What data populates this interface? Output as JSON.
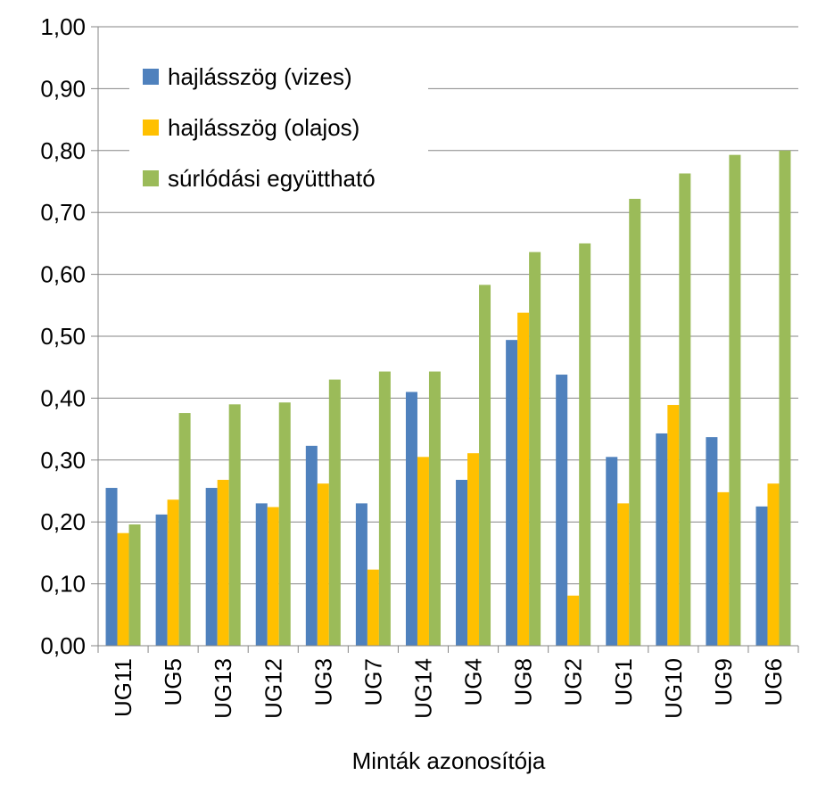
{
  "chart_data": {
    "type": "bar",
    "title": "",
    "xlabel": "Minták azonosítója",
    "ylabel": "",
    "ylim": [
      0,
      1
    ],
    "yticks": [
      "0,00",
      "0,10",
      "0,20",
      "0,30",
      "0,40",
      "0,50",
      "0,60",
      "0,70",
      "0,80",
      "0,90",
      "1,00"
    ],
    "grid": true,
    "legend_position": "top-left",
    "categories": [
      "UG11",
      "UG5",
      "UG13",
      "UG12",
      "UG3",
      "UG7",
      "UG14",
      "UG4",
      "UG8",
      "UG2",
      "UG1",
      "UG10",
      "UG9",
      "UG6"
    ],
    "series": [
      {
        "name": "hajlásszög (vizes)",
        "color": "#4F81BD",
        "values": [
          0.255,
          0.212,
          0.255,
          0.23,
          0.323,
          0.23,
          0.41,
          0.268,
          0.494,
          0.438,
          0.305,
          0.343,
          0.337,
          0.225
        ]
      },
      {
        "name": "hajlásszög (olajos)",
        "color": "#FFC000",
        "values": [
          0.182,
          0.236,
          0.268,
          0.224,
          0.262,
          0.123,
          0.305,
          0.311,
          0.538,
          0.081,
          0.23,
          0.389,
          0.248,
          0.262
        ]
      },
      {
        "name": "súrlódási együttható",
        "color": "#9BBB59",
        "values": [
          0.196,
          0.376,
          0.39,
          0.393,
          0.43,
          0.443,
          0.443,
          0.583,
          0.636,
          0.65,
          0.722,
          0.763,
          0.793,
          0.8
        ]
      }
    ]
  }
}
